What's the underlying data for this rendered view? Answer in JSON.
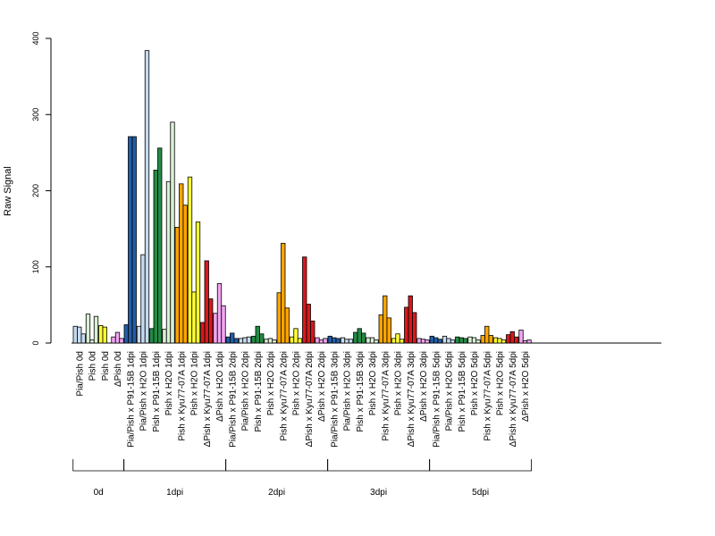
{
  "chart_data": {
    "type": "bar",
    "ylabel": "Raw Signal",
    "ylim": [
      0,
      400
    ],
    "yticks": [
      0,
      100,
      200,
      300,
      400
    ],
    "grid": false,
    "groups": [
      {
        "label": "Pia/Pish 0d",
        "color": "#c6dbef",
        "values": [
          22,
          21,
          12
        ]
      },
      {
        "label": "Pish 0d",
        "color": "#d9f0d3",
        "values": [
          38,
          4,
          35
        ]
      },
      {
        "label": "Pish 0d",
        "color": "#ffff33",
        "values": [
          23,
          21
        ]
      },
      {
        "label": "ΔPish 0d",
        "color": "#f1a5f1",
        "values": [
          8,
          14,
          6
        ]
      },
      {
        "label": "Pia/Pish x P91-15B 1dpi",
        "color": "#225ea8",
        "values": [
          24,
          271,
          271
        ]
      },
      {
        "label": "Pia/Pish x H2O 1dpi",
        "color": "#c6dbef",
        "values": [
          22,
          116,
          384
        ]
      },
      {
        "label": "Pish x P91-15B 1dpi",
        "color": "#238b45",
        "values": [
          19,
          227,
          256
        ]
      },
      {
        "label": "Pish x H2O 1dpi",
        "color": "#d9f0d3",
        "values": [
          18,
          212,
          290
        ]
      },
      {
        "label": "Pish x Kyu77-07A 1dpi",
        "color": "#ffa500",
        "values": [
          152,
          209,
          181
        ]
      },
      {
        "label": "Pish x H2O 1dpi",
        "color": "#ffff33",
        "values": [
          218,
          67,
          159
        ]
      },
      {
        "label": "ΔPish x Kyu77-07A 1dpi",
        "color": "#d7191c",
        "values": [
          27,
          108,
          58
        ]
      },
      {
        "label": "ΔPish x H2O 1dpi",
        "color": "#f1a5f1",
        "values": [
          39,
          78,
          49
        ]
      },
      {
        "label": "Pia/Pish x P91-15B 2dpi",
        "color": "#225ea8",
        "values": [
          8,
          13,
          6
        ]
      },
      {
        "label": "Pia/Pish x H2O 2dpi",
        "color": "#c6dbef",
        "values": [
          6,
          7,
          8
        ]
      },
      {
        "label": "Pish x P91-15B 2dpi",
        "color": "#238b45",
        "values": [
          9,
          22,
          12
        ]
      },
      {
        "label": "Pish x H2O 2dpi",
        "color": "#d9f0d3",
        "values": [
          5,
          6,
          4
        ]
      },
      {
        "label": "Pish x Kyu77-07A 2dpi",
        "color": "#ffa500",
        "values": [
          66,
          131,
          46
        ]
      },
      {
        "label": "Pish x H2O 2dpi",
        "color": "#ffff33",
        "values": [
          8,
          19,
          6
        ]
      },
      {
        "label": "ΔPish x Kyu77-07A 2dpi",
        "color": "#d7191c",
        "values": [
          113,
          51,
          29
        ]
      },
      {
        "label": "ΔPish x H2O 2dpi",
        "color": "#f1a5f1",
        "values": [
          7,
          4,
          6
        ]
      },
      {
        "label": "Pia/Pish x P91-15B 3dpi",
        "color": "#225ea8",
        "values": [
          9,
          7,
          6
        ]
      },
      {
        "label": "Pia/Pish x H2O 3dpi",
        "color": "#c6dbef",
        "values": [
          7,
          5,
          5
        ]
      },
      {
        "label": "Pish x P91-15B 3dpi",
        "color": "#238b45",
        "values": [
          14,
          19,
          13
        ]
      },
      {
        "label": "Pish x H2O 3dpi",
        "color": "#d9f0d3",
        "values": [
          7,
          7,
          4
        ]
      },
      {
        "label": "Pish x Kyu77-07A 3dpi",
        "color": "#ffa500",
        "values": [
          37,
          62,
          33
        ]
      },
      {
        "label": "Pish x H2O 3dpi",
        "color": "#ffff33",
        "values": [
          6,
          12,
          5
        ]
      },
      {
        "label": "ΔPish x Kyu77-07A 3dpi",
        "color": "#d7191c",
        "values": [
          47,
          62,
          40
        ]
      },
      {
        "label": "ΔPish x H2O 3dpi",
        "color": "#f1a5f1",
        "values": [
          6,
          5,
          4
        ]
      },
      {
        "label": "Pia/Pish x P91-15B 5dpi",
        "color": "#225ea8",
        "values": [
          9,
          7,
          5
        ]
      },
      {
        "label": "Pia/Pish x H2O 5dpi",
        "color": "#c6dbef",
        "values": [
          9,
          6,
          4
        ]
      },
      {
        "label": "Pish x P91-15B 5dpi",
        "color": "#238b45",
        "values": [
          8,
          7,
          6
        ]
      },
      {
        "label": "Pish x H2O 5dpi",
        "color": "#d9f0d3",
        "values": [
          8,
          7,
          4
        ]
      },
      {
        "label": "Pish x Kyu77-07A 5dpi",
        "color": "#ffa500",
        "values": [
          10,
          22,
          10
        ]
      },
      {
        "label": "Pish x H2O 5dpi",
        "color": "#ffff33",
        "values": [
          7,
          6,
          4
        ]
      },
      {
        "label": "ΔPish x Kyu77-07A 5dpi",
        "color": "#d7191c",
        "values": [
          11,
          15,
          8
        ]
      },
      {
        "label": "ΔPish x H2O 5dpi",
        "color": "#f1a5f1",
        "values": [
          17,
          3,
          4
        ]
      }
    ],
    "timepoints": [
      {
        "label": "0d",
        "from": 0,
        "to": 3
      },
      {
        "label": "1dpi",
        "from": 4,
        "to": 11
      },
      {
        "label": "2dpi",
        "from": 12,
        "to": 19
      },
      {
        "label": "3dpi",
        "from": 20,
        "to": 27
      },
      {
        "label": "5dpi",
        "from": 28,
        "to": 35
      }
    ]
  }
}
